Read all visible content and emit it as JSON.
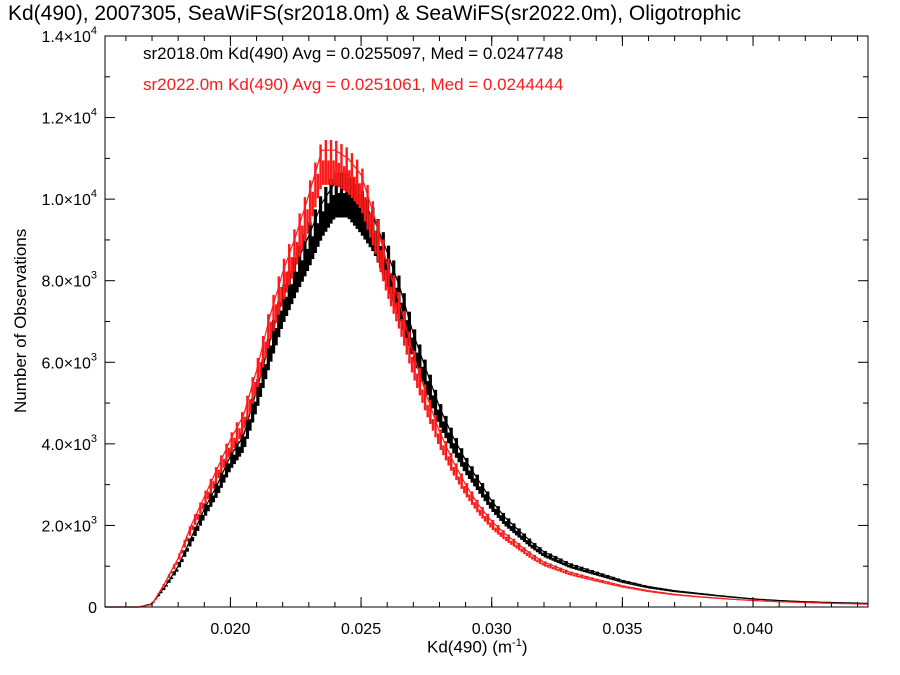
{
  "chart_data": {
    "type": "bar",
    "title": "Kd(490), 2007305, SeaWiFS(sr2018.0m) & SeaWiFS(sr2022.0m), Oligotrophic",
    "xlabel": "Kd(490) (m",
    "xlabel_exp": "-1",
    "xlabel_tail": ")",
    "ylabel": "Number of Observations",
    "xlim": [
      0.0152,
      0.0444
    ],
    "ylim": [
      0,
      14000
    ],
    "x_ticks": [
      0.02,
      0.025,
      0.03,
      0.035,
      0.04
    ],
    "x_tick_labels": [
      "0.020",
      "0.025",
      "0.030",
      "0.035",
      "0.040"
    ],
    "y_ticks": [
      0,
      2000,
      4000,
      6000,
      8000,
      10000,
      12000,
      14000
    ],
    "y_tick_labels": [
      {
        "mant": "0",
        "exp": ""
      },
      {
        "mant": "2.0×10",
        "exp": "3"
      },
      {
        "mant": "4.0×10",
        "exp": "3"
      },
      {
        "mant": "6.0×10",
        "exp": "3"
      },
      {
        "mant": "8.0×10",
        "exp": "3"
      },
      {
        "mant": "1.0×10",
        "exp": "4"
      },
      {
        "mant": "1.2×10",
        "exp": "4"
      },
      {
        "mant": "1.4×10",
        "exp": "4"
      }
    ],
    "legend": [
      {
        "text": "sr2018.0m Kd(490) Avg = 0.0255097, Med = 0.0247748",
        "color": "#000000"
      },
      {
        "text": "sr2022.0m Kd(490) Avg = 0.0251061, Med = 0.0244444",
        "color": "#ff1a1a"
      }
    ],
    "series": [
      {
        "name": "sr2018.0m",
        "color": "#000000",
        "points": [
          [
            0.0152,
            0
          ],
          [
            0.016,
            0
          ],
          [
            0.0165,
            0
          ],
          [
            0.017,
            80
          ],
          [
            0.0175,
            500
          ],
          [
            0.018,
            1000
          ],
          [
            0.0185,
            1700
          ],
          [
            0.019,
            2400
          ],
          [
            0.0195,
            3000
          ],
          [
            0.02,
            3700
          ],
          [
            0.0205,
            4200
          ],
          [
            0.021,
            5300
          ],
          [
            0.0215,
            6500
          ],
          [
            0.022,
            7600
          ],
          [
            0.0225,
            8400
          ],
          [
            0.023,
            9100
          ],
          [
            0.0235,
            9900
          ],
          [
            0.024,
            10400
          ],
          [
            0.0245,
            10400
          ],
          [
            0.025,
            10000
          ],
          [
            0.0255,
            9500
          ],
          [
            0.026,
            8700
          ],
          [
            0.0265,
            7800
          ],
          [
            0.027,
            6700
          ],
          [
            0.0275,
            5800
          ],
          [
            0.028,
            4900
          ],
          [
            0.0285,
            4200
          ],
          [
            0.029,
            3600
          ],
          [
            0.0295,
            3100
          ],
          [
            0.03,
            2600
          ],
          [
            0.0305,
            2200
          ],
          [
            0.031,
            1900
          ],
          [
            0.0315,
            1600
          ],
          [
            0.032,
            1350
          ],
          [
            0.033,
            1050
          ],
          [
            0.034,
            850
          ],
          [
            0.035,
            650
          ],
          [
            0.036,
            500
          ],
          [
            0.037,
            400
          ],
          [
            0.038,
            330
          ],
          [
            0.039,
            260
          ],
          [
            0.04,
            200
          ],
          [
            0.041,
            160
          ],
          [
            0.042,
            130
          ],
          [
            0.043,
            110
          ],
          [
            0.0444,
            90
          ]
        ]
      },
      {
        "name": "sr2022.0m",
        "color": "#ff1a1a",
        "points": [
          [
            0.0152,
            0
          ],
          [
            0.016,
            0
          ],
          [
            0.0165,
            0
          ],
          [
            0.017,
            60
          ],
          [
            0.0175,
            600
          ],
          [
            0.018,
            1200
          ],
          [
            0.0185,
            2000
          ],
          [
            0.019,
            2700
          ],
          [
            0.0195,
            3400
          ],
          [
            0.02,
            4100
          ],
          [
            0.0205,
            4700
          ],
          [
            0.021,
            5800
          ],
          [
            0.0215,
            7100
          ],
          [
            0.022,
            8200
          ],
          [
            0.0225,
            9100
          ],
          [
            0.023,
            10100
          ],
          [
            0.0235,
            11200
          ],
          [
            0.024,
            11200
          ],
          [
            0.0245,
            11000
          ],
          [
            0.025,
            10600
          ],
          [
            0.0255,
            9600
          ],
          [
            0.026,
            8400
          ],
          [
            0.0265,
            7400
          ],
          [
            0.027,
            6200
          ],
          [
            0.0275,
            5200
          ],
          [
            0.028,
            4300
          ],
          [
            0.0285,
            3600
          ],
          [
            0.029,
            3000
          ],
          [
            0.0295,
            2500
          ],
          [
            0.03,
            2100
          ],
          [
            0.0305,
            1800
          ],
          [
            0.031,
            1550
          ],
          [
            0.0315,
            1300
          ],
          [
            0.032,
            1100
          ],
          [
            0.033,
            850
          ],
          [
            0.034,
            680
          ],
          [
            0.035,
            520
          ],
          [
            0.036,
            400
          ],
          [
            0.037,
            310
          ],
          [
            0.038,
            250
          ],
          [
            0.039,
            200
          ],
          [
            0.04,
            160
          ],
          [
            0.041,
            130
          ],
          [
            0.042,
            110
          ],
          [
            0.043,
            90
          ],
          [
            0.0444,
            70
          ]
        ]
      }
    ]
  }
}
